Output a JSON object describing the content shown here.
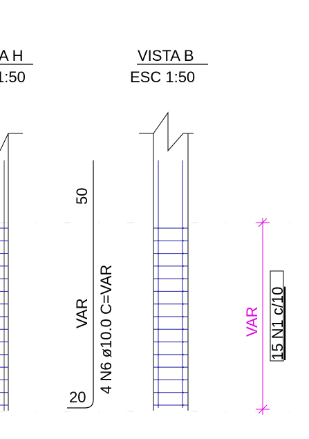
{
  "left_view": {
    "title_partial": "A H",
    "scale_partial": "1:50"
  },
  "right_view": {
    "title": "VISTA B",
    "scale": "ESC 1:50"
  },
  "rebar": {
    "dim_top": "50",
    "dim_mid": "VAR",
    "dim_bottom": "20",
    "label": "4 N6 ø10.0 C=VAR"
  },
  "stirrups": {
    "dim_label": "VAR",
    "label": "15 N1 c/10"
  },
  "colors": {
    "ink": "#000000",
    "rebar": "#1a1aa6",
    "dimension": "#e000e0",
    "thin": "#000000"
  }
}
